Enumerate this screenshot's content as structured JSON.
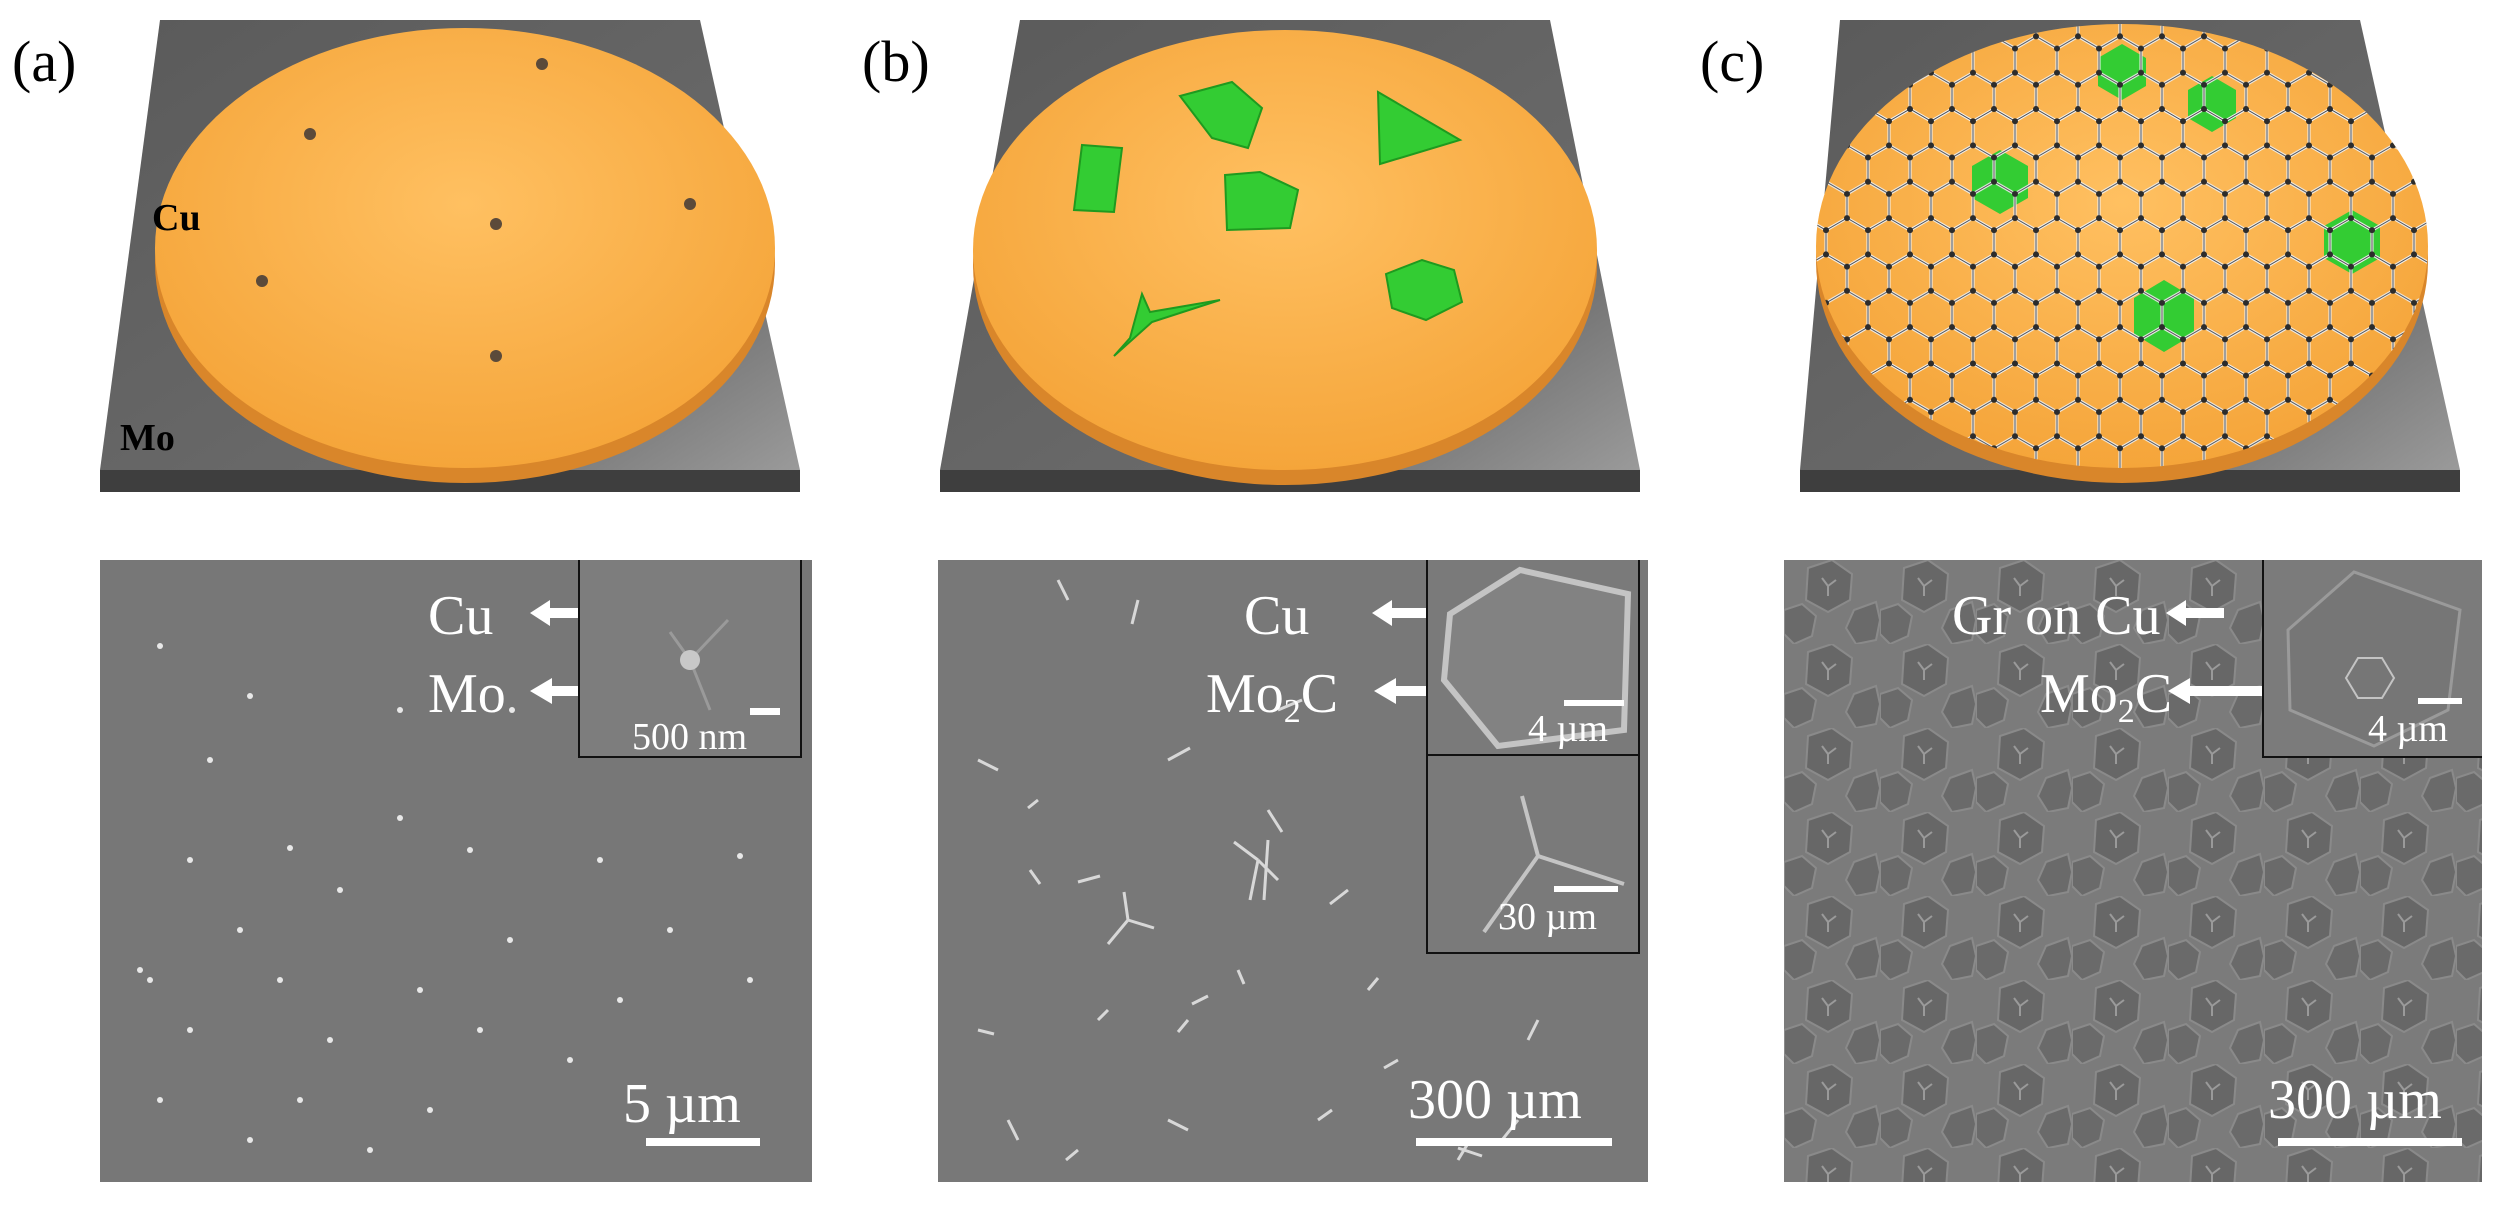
{
  "panels": [
    {
      "letter": "(a)",
      "schematic": {
        "cu": "Cu",
        "mo": "Mo"
      },
      "sem": {
        "label_top": "Cu",
        "label_bottom": "Mo",
        "inset_scale": "500 nm",
        "scale": "5 µm"
      }
    },
    {
      "letter": "(b)",
      "sem": {
        "label_top": "Cu",
        "label_bottom_main": "Mo",
        "label_bottom_sub": "2",
        "label_bottom_end": "C",
        "inset1_scale": "4 µm",
        "inset2_scale": "30 µm",
        "scale": "300 µm"
      }
    },
    {
      "letter": "(c)",
      "sem": {
        "label_top": "Gr on Cu",
        "label_bottom_main": "Mo",
        "label_bottom_sub": "2",
        "label_bottom_end": "C",
        "inset_scale": "4 µm",
        "scale": "300 µm"
      }
    }
  ],
  "colors": {
    "copper": "#f7a83a",
    "substrate": "#6b6b6b",
    "mo2c": "#33cc33",
    "sem_bg": "#767676"
  }
}
